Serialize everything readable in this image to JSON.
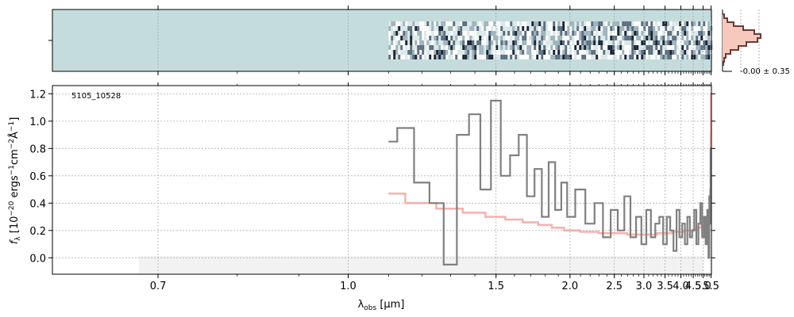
{
  "object_id": "5105_10528",
  "xlabel_main": "λ",
  "xlabel_sub": "obs",
  "xlabel_unit": " [μm]",
  "ylabel": "f",
  "ylabel_sub": "λ",
  "ylabel_rest": " [10",
  "ylabel_exp1": "−20",
  "ylabel_mid1": " ergs",
  "ylabel_exp2": "−1",
  "ylabel_mid2": "cm",
  "ylabel_exp3": "−2",
  "ylabel_mid3": "Å",
  "ylabel_exp4": "−1",
  "ylabel_end": "]",
  "hist_label": "-0.00 ± 0.35",
  "colors": {
    "spectrum": "#808080",
    "model": "#f4a3a0",
    "panel_bg": "#c5dcdc",
    "hist_fill": "#f7c9bd",
    "hist_line": "#6b3a33",
    "grid": "#b0b0b0"
  },
  "chart_data": {
    "type": "line",
    "xlabel": "λobs [μm]",
    "ylabel": "fλ [10^-20 ergs^-1 cm^-2 Å^-1]",
    "x_scale": "reciprocal",
    "xlim": [
      0.6,
      5.52
    ],
    "ylim": [
      -0.12,
      1.26
    ],
    "x_ticks": [
      "0.7",
      "1.0",
      "1.5",
      "2.0",
      "2.5",
      "3.0",
      "3.5",
      "4.0",
      "4.5",
      "5.0",
      "5.5"
    ],
    "x_tick_values": [
      0.7,
      1.0,
      1.5,
      2.0,
      2.5,
      3.0,
      3.5,
      4.0,
      4.5,
      5.0,
      5.5
    ],
    "y_ticks": [
      "0.0",
      "0.2",
      "0.4",
      "0.6",
      "0.8",
      "1.0",
      "1.2"
    ],
    "y_tick_values": [
      0.0,
      0.2,
      0.4,
      0.6,
      0.8,
      1.0,
      1.2
    ],
    "grid": true,
    "annotation": "5105_10528",
    "series": [
      {
        "x": [
          1.1,
          1.15,
          1.2,
          1.25,
          1.3,
          1.35,
          1.4,
          1.45,
          1.5,
          1.55,
          1.6,
          1.65,
          1.7,
          1.75,
          1.8,
          1.85,
          1.9,
          1.95,
          2.0,
          2.1,
          2.2,
          2.3,
          2.4,
          2.5,
          2.6,
          2.7,
          2.8,
          2.9,
          3.0,
          3.1,
          3.2,
          3.3,
          3.4,
          3.5,
          3.6,
          3.7,
          3.8,
          3.9,
          4.0,
          4.1,
          4.2,
          4.3,
          4.4,
          4.5,
          4.6,
          4.7,
          4.8,
          4.9,
          5.0,
          5.1,
          5.2,
          5.3,
          5.35,
          5.4,
          5.45,
          5.48,
          5.5
        ],
        "y": [
          0.85,
          0.95,
          0.55,
          0.4,
          -0.05,
          0.9,
          1.05,
          0.5,
          1.15,
          0.6,
          0.75,
          0.9,
          0.45,
          0.65,
          0.3,
          0.7,
          0.35,
          0.55,
          0.3,
          0.5,
          0.25,
          0.4,
          0.15,
          0.35,
          0.2,
          0.45,
          0.15,
          0.3,
          0.1,
          0.35,
          0.15,
          0.25,
          0.3,
          0.1,
          0.3,
          0.2,
          0.05,
          0.35,
          0.15,
          0.25,
          0.1,
          0.3,
          0.15,
          0.2,
          0.35,
          0.1,
          0.25,
          0.4,
          0.15,
          0.3,
          0.1,
          0.35,
          0.0,
          0.45,
          0.25,
          0.8,
          0.6
        ]
      },
      {
        "x": [
          1.1,
          1.2,
          1.3,
          1.4,
          1.5,
          1.6,
          1.7,
          1.8,
          1.9,
          2.0,
          2.2,
          2.4,
          2.6,
          2.8,
          3.0,
          3.2,
          3.4,
          3.6,
          3.8,
          4.0,
          4.2,
          4.4,
          4.6,
          4.8,
          5.0,
          5.1,
          5.2,
          5.3,
          5.4,
          5.45,
          5.48,
          5.5
        ],
        "y": [
          0.47,
          0.4,
          0.36,
          0.33,
          0.3,
          0.28,
          0.26,
          0.24,
          0.22,
          0.2,
          0.19,
          0.18,
          0.18,
          0.17,
          0.17,
          0.17,
          0.18,
          0.18,
          0.19,
          0.19,
          0.2,
          0.2,
          0.21,
          0.22,
          0.24,
          0.26,
          0.28,
          0.3,
          0.35,
          0.5,
          0.9,
          1.2
        ]
      }
    ]
  }
}
